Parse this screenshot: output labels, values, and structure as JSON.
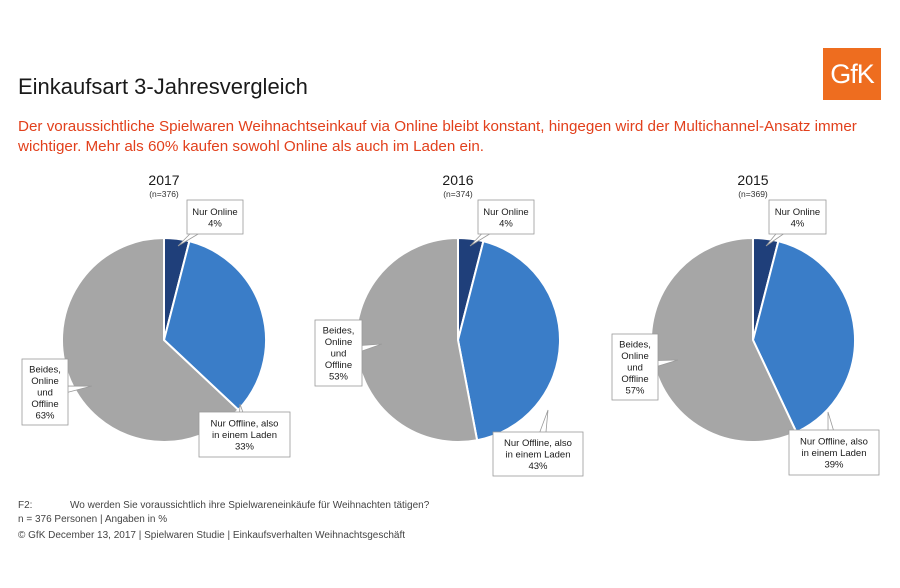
{
  "logo": {
    "text": "GfK"
  },
  "title": "Einkaufsart 3-Jahresvergleich",
  "subtitle": "Der voraussichtliche Spielwaren Weihnachtseinkauf via Online bleibt konstant, hingegen wird der Multichannel-Ansatz immer wichtiger. Mehr als 60% kaufen sowohl Online als auch im Laden ein.",
  "colors": {
    "online": "#1f3f7a",
    "offline": "#3a7dc8",
    "beides": "#a6a6a6",
    "subtitle": "#e2401c"
  },
  "chart_data": [
    {
      "type": "pie",
      "title": "2017",
      "subtitle": "(n=376)",
      "categories": [
        "Nur Online",
        "Nur Offline, also in einem Laden",
        "Beides, Online und Offline"
      ],
      "values": [
        4,
        33,
        63
      ],
      "labels": [
        {
          "lines": [
            "Nur Online",
            "4%"
          ]
        },
        {
          "lines": [
            "Nur Offline, also",
            "in einem Laden",
            "33%"
          ]
        },
        {
          "lines": [
            "Beides,",
            "Online",
            "und",
            "Offline",
            "63%"
          ]
        }
      ]
    },
    {
      "type": "pie",
      "title": "2016",
      "subtitle": "(n=374)",
      "categories": [
        "Nur Online",
        "Nur Offline, also in einem Laden",
        "Beides, Online und Offline"
      ],
      "values": [
        4,
        43,
        53
      ],
      "labels": [
        {
          "lines": [
            "Nur Online",
            "4%"
          ]
        },
        {
          "lines": [
            "Nur Offline, also",
            "in einem Laden",
            "43%"
          ]
        },
        {
          "lines": [
            "Beides,",
            "Online",
            "und",
            "Offline",
            "53%"
          ]
        }
      ]
    },
    {
      "type": "pie",
      "title": "2015",
      "subtitle": "(n=369)",
      "categories": [
        "Nur Online",
        "Nur Offline, also in einem Laden",
        "Beides, Online und Offline"
      ],
      "values": [
        4,
        39,
        57
      ],
      "labels": [
        {
          "lines": [
            "Nur Online",
            "4%"
          ]
        },
        {
          "lines": [
            "Nur Offline, also",
            "in einem Laden",
            "39%"
          ]
        },
        {
          "lines": [
            "Beides,",
            "Online",
            "und",
            "Offline",
            "57%"
          ]
        }
      ]
    }
  ],
  "footer": {
    "question_id": "F2:",
    "question": "Wo werden Sie voraussichtlich ihre Spielwareneinkäufe für Weihnachten tätigen?",
    "sample": "n = 376 Personen | Angaben in %",
    "copyright": "© GfK December 13, 2017 | Spielwaren Studie | Einkaufsverhalten Weihnachtsgeschäft"
  }
}
